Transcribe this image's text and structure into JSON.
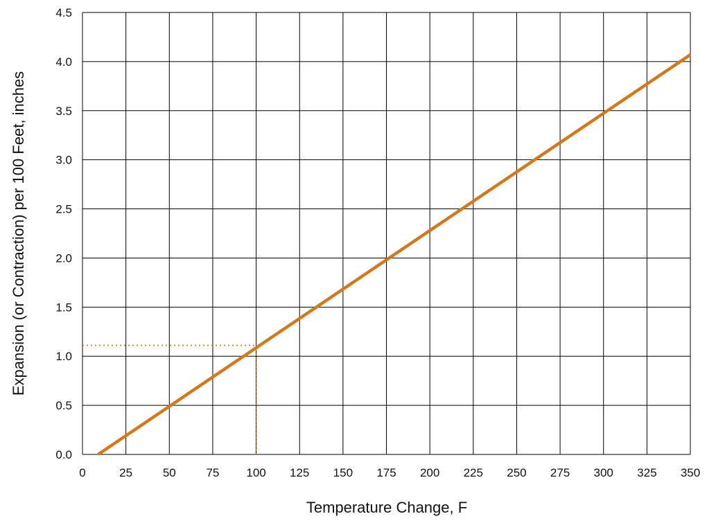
{
  "colors": {
    "line": "#D2781E",
    "grid": "#000000",
    "text": "#111111"
  },
  "chart_data": {
    "type": "line",
    "title": "",
    "xlabel": "Temperature Change, F",
    "ylabel": "Expansion (or Contraction) per 100 Feet, inches",
    "xlim": [
      0,
      350
    ],
    "ylim": [
      0,
      4.5
    ],
    "grid": true,
    "x_ticks": [
      0,
      25,
      50,
      75,
      100,
      125,
      150,
      175,
      200,
      225,
      250,
      275,
      300,
      325,
      350
    ],
    "x_tick_labels": [
      "0",
      "25",
      "50",
      "75",
      "100",
      "125",
      "150",
      "175",
      "200",
      "225",
      "250",
      "275",
      "300",
      "325",
      "350"
    ],
    "y_ticks": [
      0,
      0.5,
      1.0,
      1.5,
      2.0,
      2.5,
      3.0,
      3.5,
      4.0,
      4.5
    ],
    "y_tick_labels": [
      "0.0",
      "0.5",
      "1.0",
      "1.5",
      "2.0",
      "2.5",
      "3.0",
      "3.5",
      "4.0",
      "4.5"
    ],
    "series": [
      {
        "x": [
          9,
          350
        ],
        "y": [
          0.0,
          4.07
        ]
      }
    ],
    "annotations": [
      {
        "type": "dotted-guide",
        "x": 100,
        "y": 1.11
      }
    ]
  }
}
